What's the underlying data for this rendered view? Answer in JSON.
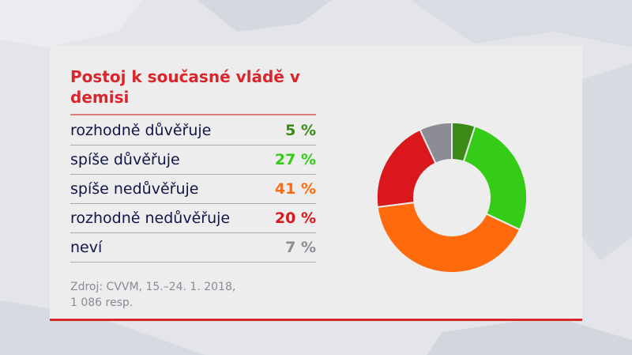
{
  "title": "Postoj k současné vládě v demisi",
  "rows": [
    {
      "label": "rozhodně důvěřuje",
      "value": "5 %",
      "color": "#3a8a16"
    },
    {
      "label": "spíše důvěřuje",
      "value": "27 %",
      "color": "#34cc16"
    },
    {
      "label": "spíše nedůvěřuje",
      "value": "41 %",
      "color": "#ff6a0c"
    },
    {
      "label": "rozhodně nedůvěřuje",
      "value": "20 %",
      "color": "#d9171c"
    },
    {
      "label": "neví",
      "value": "7 %",
      "color": "#8c8c94"
    }
  ],
  "source_line1": "Zdroj: CVVM, 15.–24. 1. 2018,",
  "source_line2": "1 086 resp.",
  "chart_data": {
    "type": "pie",
    "title": "Postoj k současné vládě v demisi",
    "categories": [
      "rozhodně důvěřuje",
      "spíše důvěřuje",
      "spíše nedůvěřuje",
      "rozhodně nedůvěřuje",
      "neví"
    ],
    "values": [
      5,
      27,
      41,
      20,
      7
    ],
    "unit": "%",
    "colors": [
      "#3a8a16",
      "#34cc16",
      "#ff6a0c",
      "#d9171c",
      "#8c8c94"
    ],
    "donut": true,
    "source": "Zdroj: CVVM, 15.–24. 1. 2018, 1 086 resp."
  }
}
